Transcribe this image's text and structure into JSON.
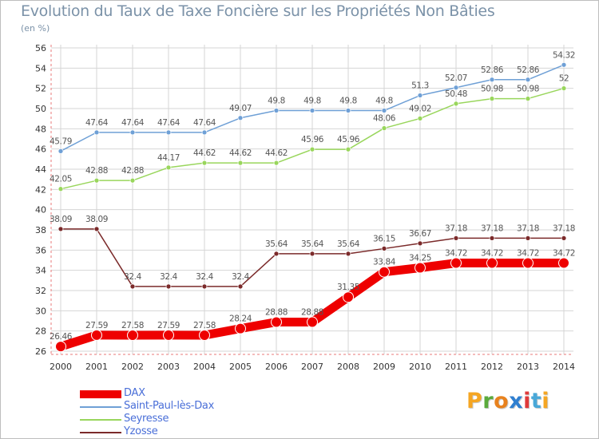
{
  "title": "Evolution du Taux de Taxe Foncière sur les Propriétés Non Bâties",
  "unit_label": "(en %)",
  "colors": {
    "axis": "#e87878",
    "grid": "#d6d6d6",
    "tick_text": "#333333",
    "label_text": "#555555",
    "legend_text": "#4a6fd8"
  },
  "chart_data": {
    "type": "line",
    "title": "Evolution du Taux de Taxe Foncière sur les Propriétés Non Bâties",
    "ylabel": "(en %)",
    "xlabel": "",
    "x": [
      "2000",
      "2001",
      "2002",
      "2003",
      "2004",
      "2005",
      "2006",
      "2007",
      "2008",
      "2009",
      "2010",
      "2011",
      "2012",
      "2013",
      "2014"
    ],
    "ylim": [
      26,
      56
    ],
    "yticks": [
      26,
      28,
      30,
      32,
      34,
      36,
      38,
      40,
      42,
      44,
      46,
      48,
      50,
      52,
      54,
      56
    ],
    "grid": true,
    "legend_position": "bottom-left",
    "series": [
      {
        "name": "DAX",
        "color": "#ee0000",
        "thick": true,
        "values": [
          26.46,
          27.59,
          27.58,
          27.59,
          27.58,
          28.24,
          28.88,
          28.88,
          31.35,
          33.84,
          34.25,
          34.72,
          34.72,
          34.72,
          34.72
        ],
        "labels": [
          "26.46",
          "27.59",
          "27.58",
          "27.59",
          "27.58",
          "28.24",
          "28.88",
          "28.88",
          "31.35",
          "33.84",
          "34.25",
          "34.72",
          "34.72",
          "34.72",
          "34.72"
        ]
      },
      {
        "name": "Saint-Paul-lès-Dax",
        "color": "#6fa0d6",
        "thick": false,
        "values": [
          45.79,
          47.64,
          47.64,
          47.64,
          47.64,
          49.07,
          49.8,
          49.8,
          49.8,
          49.8,
          51.3,
          52.07,
          52.86,
          52.86,
          54.32
        ],
        "labels": [
          "45.79",
          "47.64",
          "47.64",
          "47.64",
          "47.64",
          "49.07",
          "49.8",
          "49.8",
          "49.8",
          "49.8",
          "51.3",
          "52.07",
          "52.86",
          "52.86",
          "54.32"
        ]
      },
      {
        "name": "Seyresse",
        "color": "#99d65c",
        "thick": false,
        "values": [
          42.05,
          42.88,
          42.88,
          44.17,
          44.62,
          44.62,
          44.62,
          45.96,
          45.96,
          48.06,
          49.02,
          50.48,
          50.98,
          50.98,
          52
        ],
        "labels": [
          "42.05",
          "42.88",
          "42.88",
          "44.17",
          "44.62",
          "44.62",
          "44.62",
          "45.96",
          "45.96",
          "48.06",
          "49.02",
          "50.48",
          "50.98",
          "50.98",
          "52"
        ]
      },
      {
        "name": "Yzosse",
        "color": "#7b2a2a",
        "thick": false,
        "values": [
          38.09,
          38.09,
          32.4,
          32.4,
          32.4,
          32.4,
          35.64,
          35.64,
          35.64,
          36.15,
          36.67,
          37.18,
          37.18,
          37.18,
          37.18
        ],
        "labels": [
          "38.09",
          "38.09",
          "32.4",
          "32.4",
          "32.4",
          "32.4",
          "35.64",
          "35.64",
          "35.64",
          "36.15",
          "36.67",
          "37.18",
          "37.18",
          "37.18",
          "37.18"
        ]
      }
    ]
  },
  "legend": [
    {
      "label": "DAX"
    },
    {
      "label": "Saint-Paul-lès-Dax"
    },
    {
      "label": "Seyresse"
    },
    {
      "label": "Yzosse"
    }
  ],
  "logo": {
    "text": "Proxiti",
    "letter_colors": [
      "#f5a623",
      "#5aaa3c",
      "#e8821e",
      "#2f7fd0",
      "#e03a3a",
      "#49a8d8",
      "#f5a623"
    ]
  }
}
